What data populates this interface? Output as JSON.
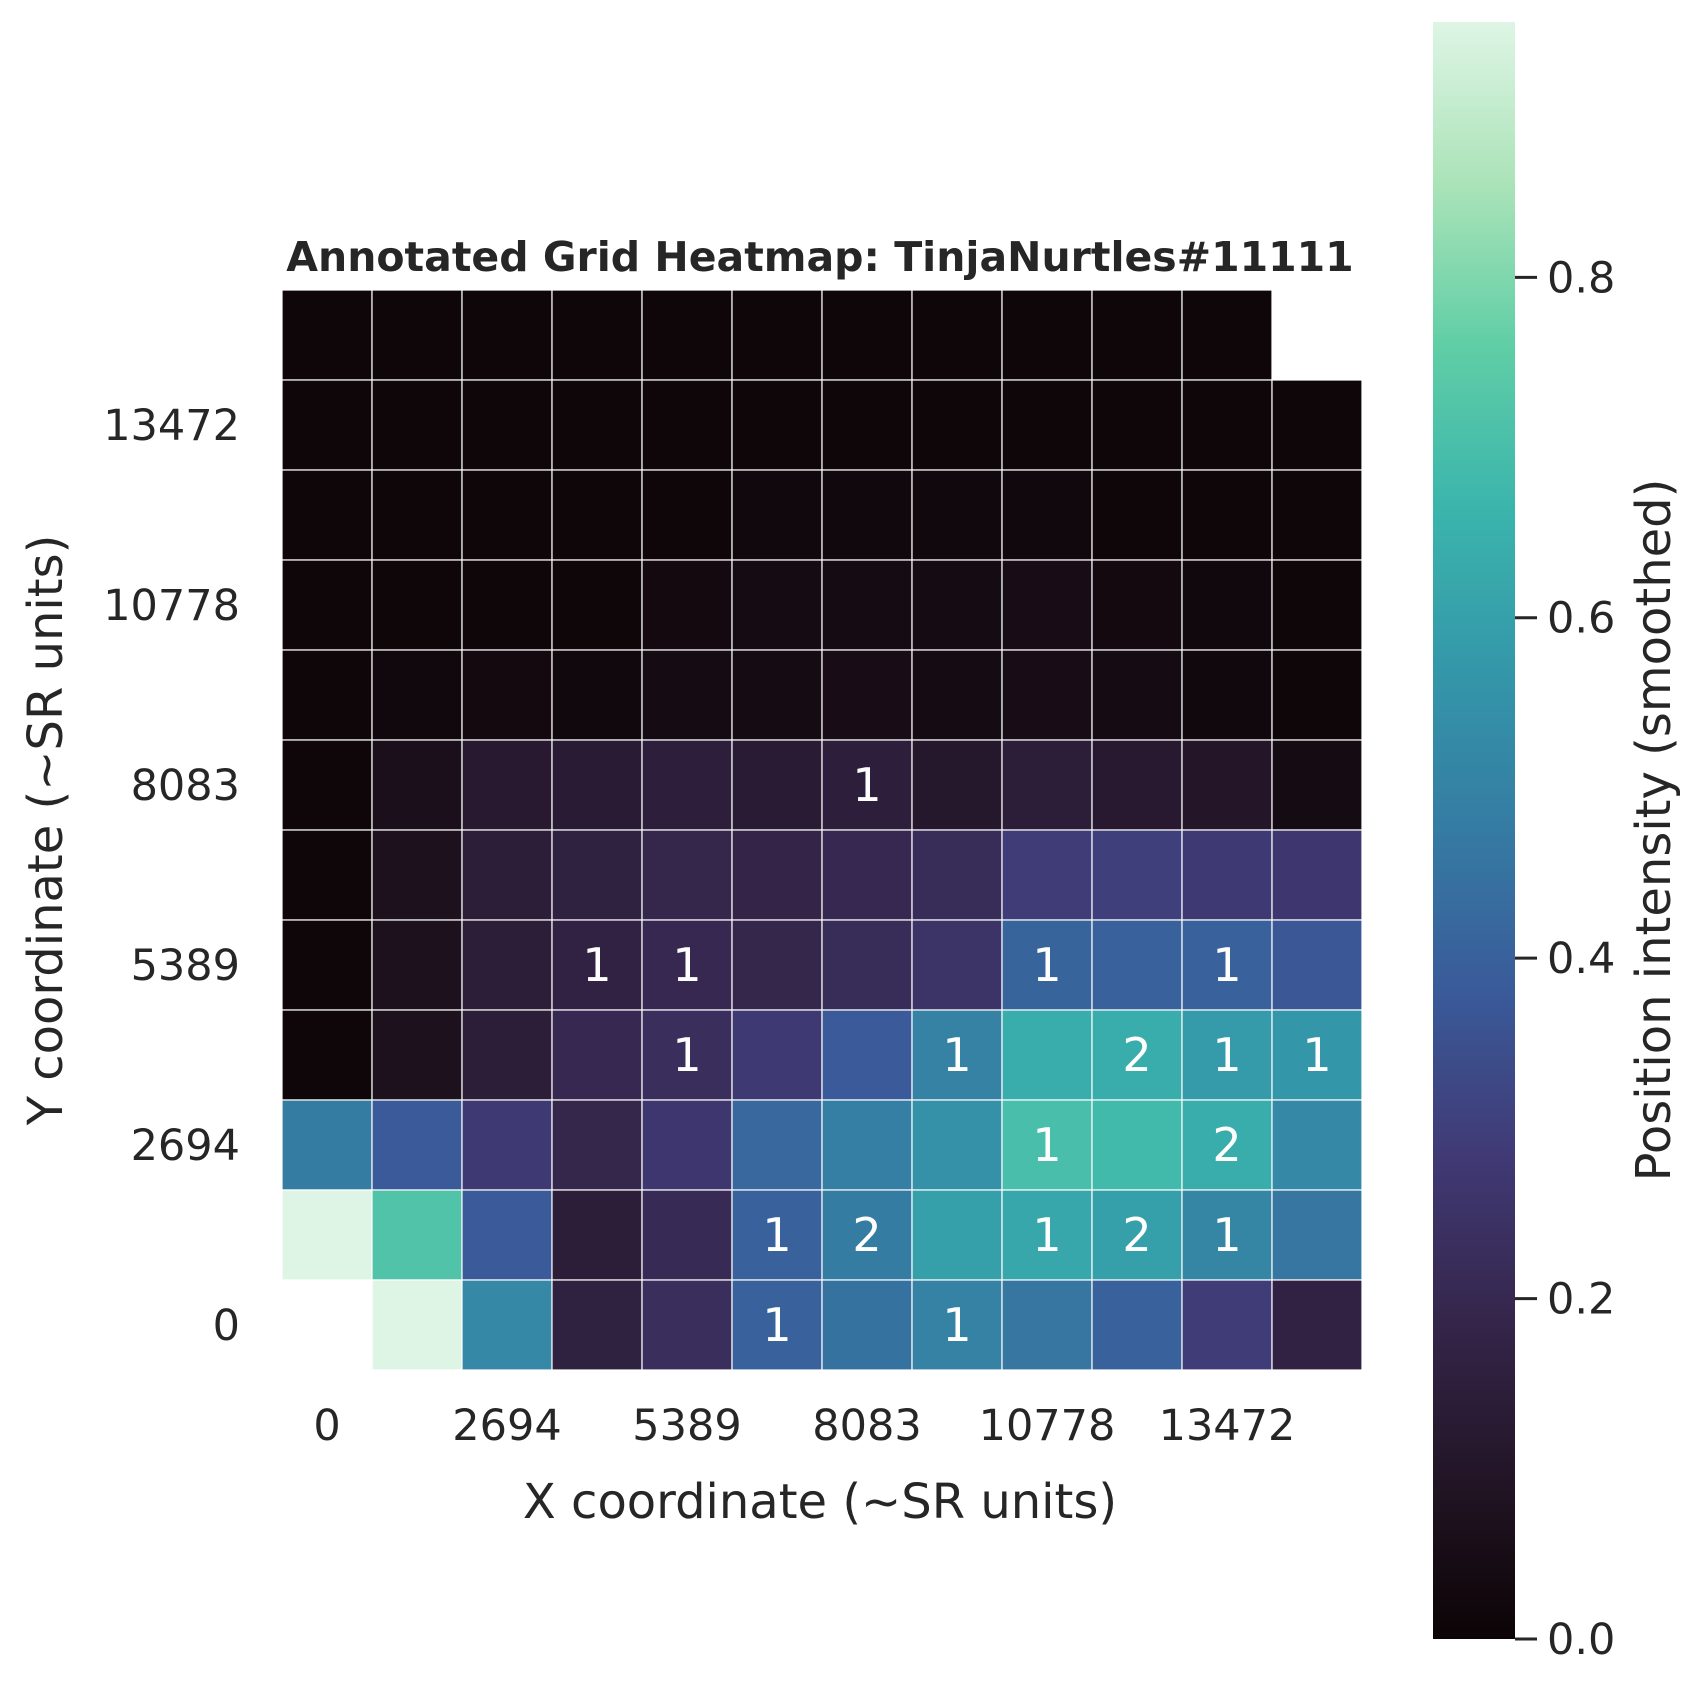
{
  "chart_data": {
    "type": "heatmap",
    "title": "Annotated Grid Heatmap: TinjaNurtles#11111",
    "xlabel": "X coordinate (~SR units)",
    "ylabel": "Y coordinate (~SR units)",
    "x_tick_labels": [
      "0",
      "2694",
      "5389",
      "8083",
      "10778",
      "13472"
    ],
    "y_tick_labels": [
      "0",
      "2694",
      "5389",
      "8083",
      "10778",
      "13472"
    ],
    "n_cols": 12,
    "n_rows": 12,
    "rows_order": "top-to-bottom",
    "intensity": [
      [
        0.01,
        0.01,
        0.01,
        0.01,
        0.01,
        0.01,
        0.01,
        0.01,
        0.01,
        0.01,
        0.01,
        null
      ],
      [
        0.01,
        0.01,
        0.01,
        0.01,
        0.01,
        0.01,
        0.01,
        0.01,
        0.01,
        0.01,
        0.01,
        0.01
      ],
      [
        0.01,
        0.01,
        0.01,
        0.01,
        0.01,
        0.02,
        0.02,
        0.02,
        0.02,
        0.01,
        0.01,
        0.01
      ],
      [
        0.01,
        0.01,
        0.01,
        0.01,
        0.03,
        0.04,
        0.04,
        0.04,
        0.05,
        0.03,
        0.02,
        0.01
      ],
      [
        0.01,
        0.02,
        0.03,
        0.02,
        0.04,
        0.04,
        0.05,
        0.04,
        0.05,
        0.04,
        0.02,
        0.01
      ],
      [
        0.01,
        0.06,
        0.12,
        0.13,
        0.15,
        0.13,
        0.15,
        0.11,
        0.14,
        0.12,
        0.1,
        0.04
      ],
      [
        0.01,
        0.07,
        0.14,
        0.16,
        0.19,
        0.18,
        0.2,
        0.22,
        0.29,
        0.3,
        0.28,
        0.27
      ],
      [
        0.01,
        0.07,
        0.14,
        0.17,
        0.2,
        0.19,
        0.22,
        0.25,
        0.41,
        0.4,
        0.4,
        0.37
      ],
      [
        0.01,
        0.07,
        0.14,
        0.2,
        0.23,
        0.28,
        0.38,
        0.5,
        0.64,
        0.64,
        0.58,
        0.57
      ],
      [
        0.48,
        0.38,
        0.28,
        0.19,
        0.27,
        0.42,
        0.49,
        0.55,
        0.7,
        0.68,
        0.64,
        0.52
      ],
      [
        0.95,
        0.72,
        0.38,
        0.14,
        0.21,
        0.4,
        0.48,
        0.6,
        0.62,
        0.6,
        0.51,
        0.46
      ],
      [
        null,
        0.95,
        0.52,
        0.16,
        0.23,
        0.4,
        0.45,
        0.5,
        0.46,
        0.4,
        0.29,
        0.17
      ]
    ],
    "counts": [
      [
        0,
        0,
        0,
        0,
        0,
        0,
        0,
        0,
        0,
        0,
        0,
        0
      ],
      [
        0,
        0,
        0,
        0,
        0,
        0,
        0,
        0,
        0,
        0,
        0,
        0
      ],
      [
        0,
        0,
        0,
        0,
        0,
        0,
        0,
        0,
        0,
        0,
        0,
        0
      ],
      [
        0,
        0,
        0,
        0,
        0,
        0,
        0,
        0,
        0,
        0,
        0,
        0
      ],
      [
        0,
        0,
        0,
        0,
        0,
        0,
        0,
        0,
        0,
        0,
        0,
        0
      ],
      [
        0,
        0,
        0,
        0,
        0,
        0,
        1,
        0,
        0,
        0,
        0,
        0
      ],
      [
        0,
        0,
        0,
        0,
        0,
        0,
        0,
        0,
        0,
        0,
        0,
        0
      ],
      [
        0,
        0,
        0,
        1,
        1,
        0,
        0,
        0,
        1,
        0,
        1,
        0
      ],
      [
        0,
        0,
        0,
        0,
        1,
        0,
        0,
        1,
        0,
        2,
        1,
        1
      ],
      [
        0,
        0,
        0,
        0,
        0,
        0,
        0,
        0,
        1,
        0,
        2,
        0
      ],
      [
        0,
        0,
        0,
        0,
        0,
        1,
        2,
        0,
        1,
        2,
        1,
        0
      ],
      [
        0,
        0,
        0,
        0,
        0,
        1,
        0,
        1,
        0,
        0,
        0,
        0
      ]
    ],
    "colorbar": {
      "label": "Position intensity (smoothed)",
      "range": [
        0,
        0.95
      ],
      "ticks": [
        0.0,
        0.2,
        0.4,
        0.6,
        0.8
      ],
      "tick_labels": [
        "0.0",
        "0.2",
        "0.4",
        "0.6",
        "0.8"
      ],
      "colormap": "mako",
      "stops": [
        "#0b0405",
        "#231526",
        "#35264c",
        "#403a75",
        "#3a5a99",
        "#357ba3",
        "#3497a9",
        "#3bb5ac",
        "#60cea6",
        "#abe3b8",
        "#def5e5"
      ]
    },
    "grid": false,
    "cell_edge_color": "#ffffff"
  }
}
